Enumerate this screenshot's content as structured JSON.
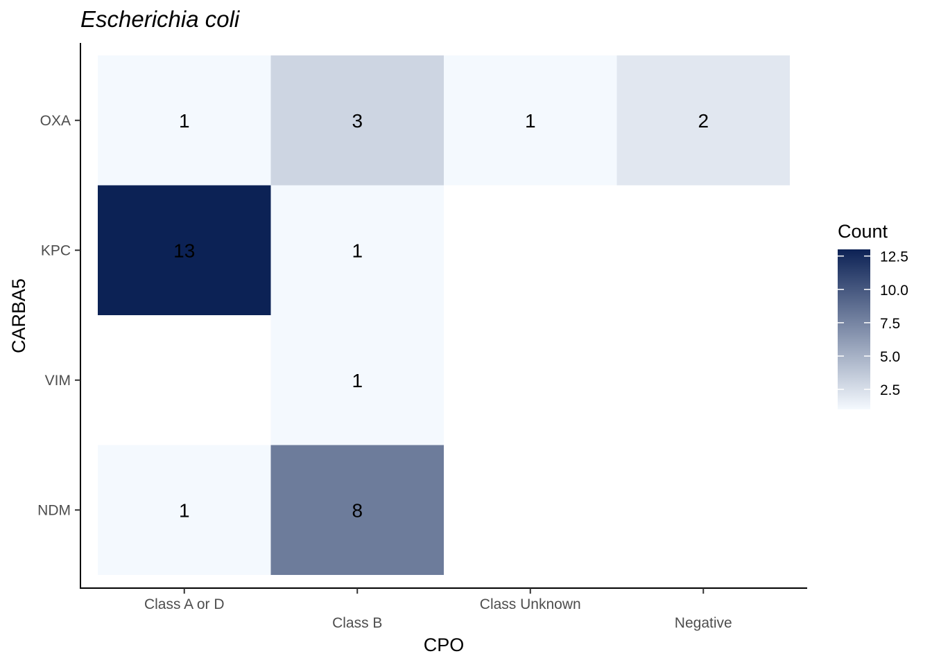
{
  "chart_data": {
    "type": "heatmap",
    "title": "Escherichia coli",
    "xlabel": "CPO",
    "ylabel": "CARBA5",
    "x_categories": [
      "Class A or D",
      "Class B",
      "Class Unknown",
      "Negative"
    ],
    "y_categories": [
      "OXA",
      "KPC",
      "VIM",
      "NDM"
    ],
    "cells": [
      {
        "x": "Class A or D",
        "y": "OXA",
        "value": 1
      },
      {
        "x": "Class B",
        "y": "OXA",
        "value": 3
      },
      {
        "x": "Class Unknown",
        "y": "OXA",
        "value": 1
      },
      {
        "x": "Negative",
        "y": "OXA",
        "value": 2
      },
      {
        "x": "Class A or D",
        "y": "KPC",
        "value": 13
      },
      {
        "x": "Class B",
        "y": "KPC",
        "value": 1
      },
      {
        "x": "Class B",
        "y": "VIM",
        "value": 1
      },
      {
        "x": "Class A or D",
        "y": "NDM",
        "value": 1
      },
      {
        "x": "Class B",
        "y": "NDM",
        "value": 8
      }
    ],
    "legend": {
      "title": "Count",
      "ticks": [
        "2.5",
        "5.0",
        "7.5",
        "10.0",
        "12.5"
      ],
      "range": [
        1,
        13
      ],
      "color_low": "#f4f9fe",
      "color_high": "#0c2255",
      "placement": "right"
    },
    "grid": false
  }
}
